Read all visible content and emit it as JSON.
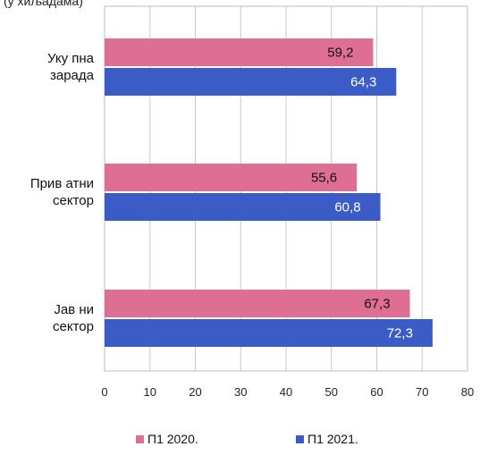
{
  "chart_data": {
    "type": "bar",
    "orientation": "horizontal",
    "header_fragment": "(у хиљадама)",
    "categories": [
      [
        "Уку пна",
        "зарада"
      ],
      [
        "Прив атни",
        "сектор"
      ],
      [
        "Јав ни",
        "сектор"
      ]
    ],
    "series": [
      {
        "name": "П1 2020.",
        "values": [
          59.2,
          55.6,
          67.3
        ],
        "labels": [
          "59,2",
          "55,6",
          "67,3"
        ],
        "color": "#de6e93",
        "label_color": "#111111"
      },
      {
        "name": "П1 2021.",
        "values": [
          64.3,
          60.8,
          72.3
        ],
        "labels": [
          "64,3",
          "60,8",
          "72,3"
        ],
        "color": "#3b5cc6",
        "label_color": "#ffffff"
      }
    ],
    "xlim": [
      0,
      80
    ],
    "xticks": [
      "0",
      "10",
      "20",
      "30",
      "40",
      "50",
      "60",
      "70",
      "80"
    ],
    "grid": "vertical",
    "legend": "bottom",
    "plot_background": "#ffffff",
    "grid_color": "#c8c8c8"
  }
}
